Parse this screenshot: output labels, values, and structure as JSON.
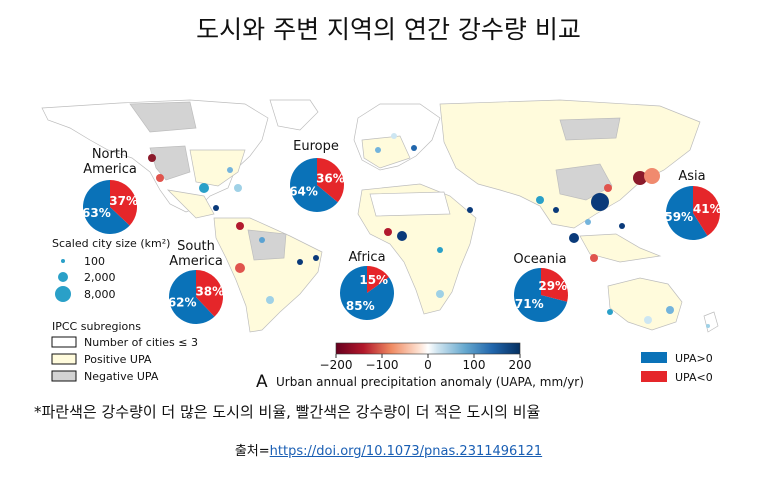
{
  "title": "도시와 주변 지역의 연간 강수량 비교",
  "regions": [
    {
      "id": "north-america",
      "label": "North America",
      "upa_pos_pct": "63%",
      "upa_neg_pct": "37%",
      "upa_pos": 63
    },
    {
      "id": "europe",
      "label": "Europe",
      "upa_pos_pct": "64%",
      "upa_neg_pct": "36%",
      "upa_pos": 64
    },
    {
      "id": "asia",
      "label": "Asia",
      "upa_pos_pct": "59%",
      "upa_neg_pct": "41%",
      "upa_pos": 59
    },
    {
      "id": "south-america",
      "label": "South America",
      "upa_pos_pct": "62%",
      "upa_neg_pct": "38%",
      "upa_pos": 62
    },
    {
      "id": "africa",
      "label": "Africa",
      "upa_pos_pct": "85%",
      "upa_neg_pct": "15%",
      "upa_pos": 85
    },
    {
      "id": "oceania",
      "label": "Oceania",
      "upa_pos_pct": "71%",
      "upa_neg_pct": "29%",
      "upa_pos": 71
    }
  ],
  "size_legend": {
    "title": "Scaled city size (km²)",
    "items": [
      "100",
      "2,000",
      "8,000"
    ]
  },
  "ipcc_legend": {
    "title": "IPCC subregions",
    "items": [
      "Number of cities ≤ 3",
      "Positive UPA",
      "Negative UPA"
    ]
  },
  "colorbar": {
    "ticks": [
      "−200",
      "−100",
      "0",
      "100",
      "200"
    ],
    "panel_letter": "A",
    "label": "Urban annual precipitation anomaly (UAPA, mm/yr)"
  },
  "pie_legend": {
    "positive": "UPA>0",
    "negative": "UPA<0"
  },
  "colors": {
    "positive": "#0a72b8",
    "negative": "#e5262a",
    "positive_upa_fill": "#fffbdc",
    "negative_upa_fill": "#d3d3d3"
  },
  "note": "*파란색은 강수량이 더 많은 도시의 비율, 빨간색은 강수량이 더 적은 도시의 비율",
  "source": {
    "prefix": "출처=",
    "link": "https://doi.org/10.1073/pnas.2311496121"
  }
}
